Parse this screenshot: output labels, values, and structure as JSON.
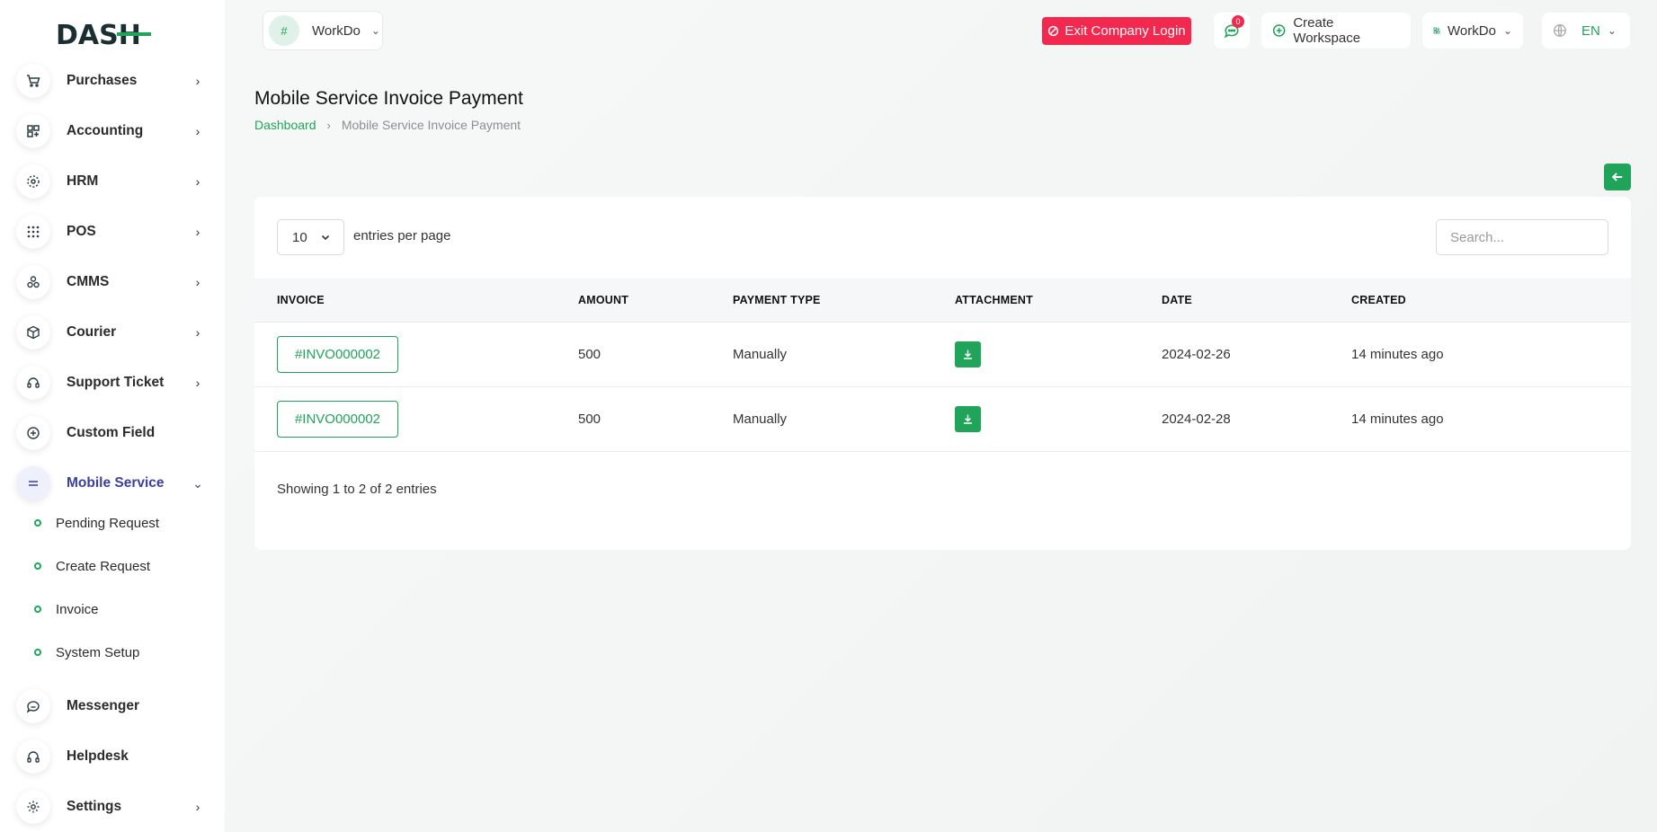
{
  "brand": {
    "logo_text": "DASH"
  },
  "sidebar": {
    "items": [
      {
        "label": "Purchases",
        "icon": "cart-icon",
        "has_children": true
      },
      {
        "label": "Accounting",
        "icon": "grid-icon",
        "has_children": true
      },
      {
        "label": "HRM",
        "icon": "users-icon",
        "has_children": true
      },
      {
        "label": "POS",
        "icon": "dots-grid-icon",
        "has_children": true
      },
      {
        "label": "CMMS",
        "icon": "components-icon",
        "has_children": true
      },
      {
        "label": "Courier",
        "icon": "box-icon",
        "has_children": true
      },
      {
        "label": "Support Ticket",
        "icon": "headset-icon",
        "has_children": true
      },
      {
        "label": "Custom Field",
        "icon": "plus-circle-icon",
        "has_children": false
      },
      {
        "label": "Mobile Service",
        "icon": "menu-icon",
        "has_children": true,
        "active": true
      },
      {
        "label": "Messenger",
        "icon": "message-icon",
        "has_children": false
      },
      {
        "label": "Helpdesk",
        "icon": "headphones-icon",
        "has_children": false
      },
      {
        "label": "Settings",
        "icon": "gear-icon",
        "has_children": true
      }
    ],
    "sub_items": [
      {
        "label": "Pending Request"
      },
      {
        "label": "Create Request"
      },
      {
        "label": "Invoice"
      },
      {
        "label": "System Setup"
      }
    ]
  },
  "header": {
    "workspace_avatar_alt": "#",
    "workspace_name": "WorkDo",
    "exit_label": "Exit Company Login",
    "notification_count": "0",
    "create_workspace_label": "Create Workspace",
    "workspace_switch_label": "WorkDo",
    "language_label": "EN"
  },
  "page": {
    "title": "Mobile Service Invoice Payment",
    "breadcrumb": {
      "home": "Dashboard",
      "current": "Mobile Service Invoice Payment"
    }
  },
  "table_controls": {
    "per_page_value": "10",
    "per_page_label": "entries per page",
    "search_placeholder": "Search..."
  },
  "table": {
    "headers": [
      "INVOICE",
      "AMOUNT",
      "PAYMENT TYPE",
      "ATTACHMENT",
      "DATE",
      "CREATED"
    ],
    "rows": [
      {
        "invoice": "#INVO000002",
        "amount": "500",
        "payment_type": "Manually",
        "date": "2024-02-26",
        "created": "14 minutes ago"
      },
      {
        "invoice": "#INVO000002",
        "amount": "500",
        "payment_type": "Manually",
        "date": "2024-02-28",
        "created": "14 minutes ago"
      }
    ],
    "summary": "Showing 1 to 2 of 2 entries"
  },
  "colors": {
    "primary": "#1fa45a",
    "danger": "#f3284f",
    "active_nav": "#3c3ea0"
  }
}
